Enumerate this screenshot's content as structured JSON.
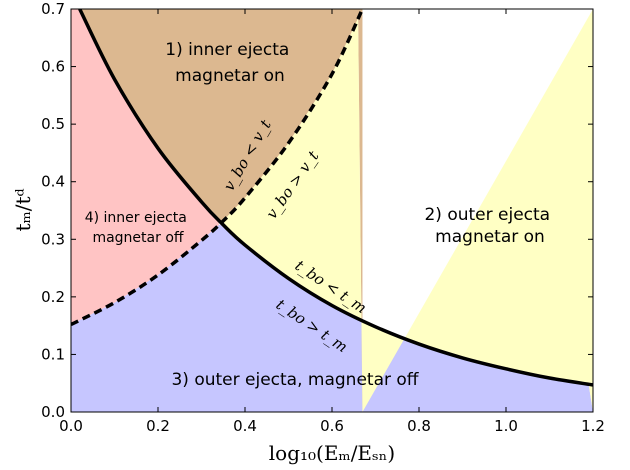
{
  "chart_data": {
    "type": "area",
    "xlabel": "log₁₀(Eₘ/Eₛₙ)",
    "ylabel": "tₘ/tᵈ",
    "xlim": [
      0.0,
      1.2
    ],
    "ylim": [
      0.0,
      0.7
    ],
    "x_ticks": [
      "0.0",
      "0.2",
      "0.4",
      "0.6",
      "0.8",
      "1.0",
      "1.2"
    ],
    "y_ticks": [
      "0.0",
      "0.1",
      "0.2",
      "0.3",
      "0.4",
      "0.5",
      "0.6",
      "0.7"
    ],
    "grid": false,
    "series": [
      {
        "style": "solid",
        "x": [
          0.02,
          0.1,
          0.2,
          0.3,
          0.35,
          0.4,
          0.5,
          0.6,
          0.7,
          0.8,
          0.9,
          1.0,
          1.1,
          1.2
        ],
        "y": [
          0.7,
          0.578,
          0.458,
          0.365,
          0.325,
          0.29,
          0.232,
          0.185,
          0.148,
          0.118,
          0.094,
          0.075,
          0.059,
          0.047
        ]
      },
      {
        "style": "dashed",
        "x": [
          0.0,
          0.1,
          0.2,
          0.3,
          0.35,
          0.4,
          0.5,
          0.6,
          0.67
        ],
        "y": [
          0.152,
          0.19,
          0.238,
          0.298,
          0.332,
          0.372,
          0.467,
          0.587,
          0.7
        ]
      }
    ],
    "regions": [
      {
        "lines": [
          "1) inner ejecta",
          "magnetar on"
        ],
        "color": "#dcb890"
      },
      {
        "lines": [
          "2) outer ejecta",
          "magnetar on"
        ],
        "color": "#ffffc4"
      },
      {
        "lines": [
          "3) outer ejecta, magnetar off"
        ],
        "color": "#c6c6ff"
      },
      {
        "lines": [
          "4) inner ejecta",
          "magnetar off"
        ],
        "color": "#ffc4c4"
      }
    ],
    "curve_labels": [
      "v_bo < v_t",
      "v_bo > v_t",
      "t_bo < t_m",
      "t_bo > t_m"
    ]
  }
}
